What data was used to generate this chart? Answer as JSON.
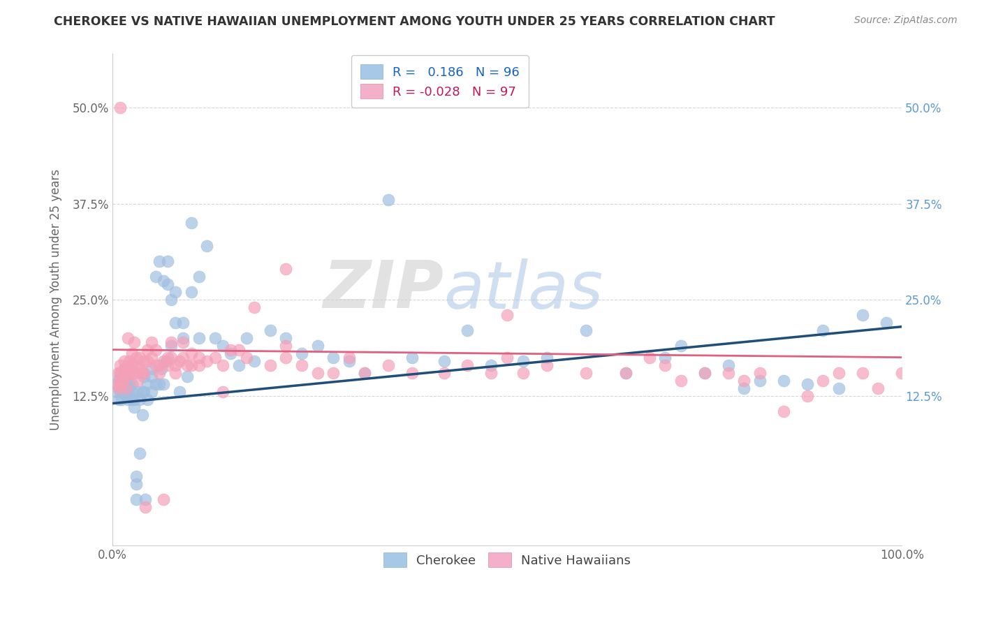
{
  "title": "CHEROKEE VS NATIVE HAWAIIAN UNEMPLOYMENT AMONG YOUTH UNDER 25 YEARS CORRELATION CHART",
  "source": "Source: ZipAtlas.com",
  "ylabel": "Unemployment Among Youth under 25 years",
  "cherokee_color": "#a0bfe0",
  "native_hawaiian_color": "#f4a0b8",
  "cherokee_line_color": "#1f4e79",
  "native_hawaiian_line_color": "#e06080",
  "background_color": "#ffffff",
  "watermark_zip": "ZIP",
  "watermark_atlas": "atlas",
  "grid_color": "#cccccc",
  "ytick_labels": [
    "12.5%",
    "25.0%",
    "37.5%",
    "50.0%"
  ],
  "ytick_values": [
    0.125,
    0.25,
    0.375,
    0.5
  ],
  "ylim": [
    -0.07,
    0.57
  ],
  "xlim": [
    0.0,
    1.0
  ],
  "cherokee_R": 0.186,
  "cherokee_N": 96,
  "native_hawaiian_R": -0.028,
  "native_hawaiian_N": 97,
  "cherokee_x": [
    0.005,
    0.007,
    0.008,
    0.01,
    0.01,
    0.01,
    0.012,
    0.012,
    0.015,
    0.015,
    0.015,
    0.015,
    0.018,
    0.018,
    0.02,
    0.02,
    0.022,
    0.022,
    0.025,
    0.025,
    0.025,
    0.028,
    0.028,
    0.03,
    0.03,
    0.03,
    0.032,
    0.035,
    0.035,
    0.038,
    0.038,
    0.04,
    0.04,
    0.042,
    0.045,
    0.045,
    0.05,
    0.05,
    0.05,
    0.055,
    0.055,
    0.06,
    0.06,
    0.062,
    0.065,
    0.065,
    0.068,
    0.07,
    0.07,
    0.075,
    0.075,
    0.08,
    0.08,
    0.085,
    0.09,
    0.09,
    0.095,
    0.1,
    0.1,
    0.11,
    0.11,
    0.12,
    0.13,
    0.14,
    0.15,
    0.16,
    0.17,
    0.18,
    0.2,
    0.22,
    0.24,
    0.26,
    0.28,
    0.3,
    0.32,
    0.35,
    0.38,
    0.42,
    0.45,
    0.48,
    0.52,
    0.55,
    0.6,
    0.65,
    0.7,
    0.72,
    0.75,
    0.78,
    0.8,
    0.82,
    0.85,
    0.88,
    0.9,
    0.92,
    0.95,
    0.98
  ],
  "cherokee_y": [
    0.13,
    0.145,
    0.12,
    0.13,
    0.145,
    0.155,
    0.12,
    0.135,
    0.13,
    0.14,
    0.15,
    0.16,
    0.125,
    0.14,
    0.12,
    0.135,
    0.125,
    0.14,
    0.12,
    0.13,
    0.14,
    0.11,
    0.12,
    -0.01,
    0.01,
    0.02,
    0.13,
    0.05,
    0.12,
    0.1,
    0.13,
    0.13,
    0.15,
    -0.01,
    0.12,
    0.14,
    0.15,
    0.13,
    0.16,
    0.14,
    0.28,
    0.14,
    0.3,
    0.16,
    0.275,
    0.14,
    0.17,
    0.27,
    0.3,
    0.19,
    0.25,
    0.22,
    0.26,
    0.13,
    0.2,
    0.22,
    0.15,
    0.26,
    0.35,
    0.2,
    0.28,
    0.32,
    0.2,
    0.19,
    0.18,
    0.165,
    0.2,
    0.17,
    0.21,
    0.2,
    0.18,
    0.19,
    0.175,
    0.17,
    0.155,
    0.38,
    0.175,
    0.17,
    0.21,
    0.165,
    0.17,
    0.175,
    0.21,
    0.155,
    0.175,
    0.19,
    0.155,
    0.165,
    0.135,
    0.145,
    0.145,
    0.14,
    0.21,
    0.135,
    0.23,
    0.22
  ],
  "native_hawaiian_x": [
    0.005,
    0.007,
    0.008,
    0.01,
    0.01,
    0.01,
    0.01,
    0.012,
    0.015,
    0.015,
    0.015,
    0.018,
    0.018,
    0.02,
    0.02,
    0.022,
    0.022,
    0.025,
    0.025,
    0.028,
    0.028,
    0.03,
    0.03,
    0.03,
    0.032,
    0.035,
    0.035,
    0.038,
    0.04,
    0.04,
    0.042,
    0.045,
    0.045,
    0.05,
    0.05,
    0.055,
    0.055,
    0.06,
    0.06,
    0.065,
    0.065,
    0.07,
    0.07,
    0.075,
    0.075,
    0.08,
    0.08,
    0.085,
    0.09,
    0.09,
    0.095,
    0.1,
    0.1,
    0.11,
    0.11,
    0.12,
    0.13,
    0.14,
    0.15,
    0.16,
    0.17,
    0.18,
    0.2,
    0.22,
    0.24,
    0.26,
    0.28,
    0.3,
    0.32,
    0.35,
    0.38,
    0.42,
    0.45,
    0.48,
    0.52,
    0.55,
    0.6,
    0.65,
    0.68,
    0.7,
    0.72,
    0.75,
    0.78,
    0.8,
    0.82,
    0.85,
    0.88,
    0.9,
    0.92,
    0.95,
    0.97,
    1.0,
    0.5,
    0.5,
    0.22,
    0.22,
    0.14
  ],
  "native_hawaiian_y": [
    0.14,
    0.155,
    0.135,
    0.14,
    0.155,
    0.165,
    0.5,
    0.145,
    0.15,
    0.16,
    0.17,
    0.135,
    0.15,
    0.2,
    0.165,
    0.155,
    0.17,
    0.165,
    0.18,
    0.195,
    0.155,
    0.175,
    0.165,
    0.155,
    0.145,
    0.16,
    0.175,
    0.155,
    0.155,
    0.17,
    -0.02,
    0.17,
    0.185,
    0.195,
    0.175,
    0.185,
    0.165,
    0.155,
    0.165,
    -0.01,
    0.17,
    0.165,
    0.175,
    0.195,
    0.175,
    0.165,
    0.155,
    0.17,
    0.195,
    0.175,
    0.165,
    0.165,
    0.18,
    0.175,
    0.165,
    0.17,
    0.175,
    0.165,
    0.185,
    0.185,
    0.175,
    0.24,
    0.165,
    0.175,
    0.165,
    0.155,
    0.155,
    0.175,
    0.155,
    0.165,
    0.155,
    0.155,
    0.165,
    0.155,
    0.155,
    0.165,
    0.155,
    0.155,
    0.175,
    0.165,
    0.145,
    0.155,
    0.155,
    0.145,
    0.155,
    0.105,
    0.125,
    0.145,
    0.155,
    0.155,
    0.135,
    0.155,
    0.175,
    0.23,
    0.29,
    0.19,
    0.13
  ]
}
